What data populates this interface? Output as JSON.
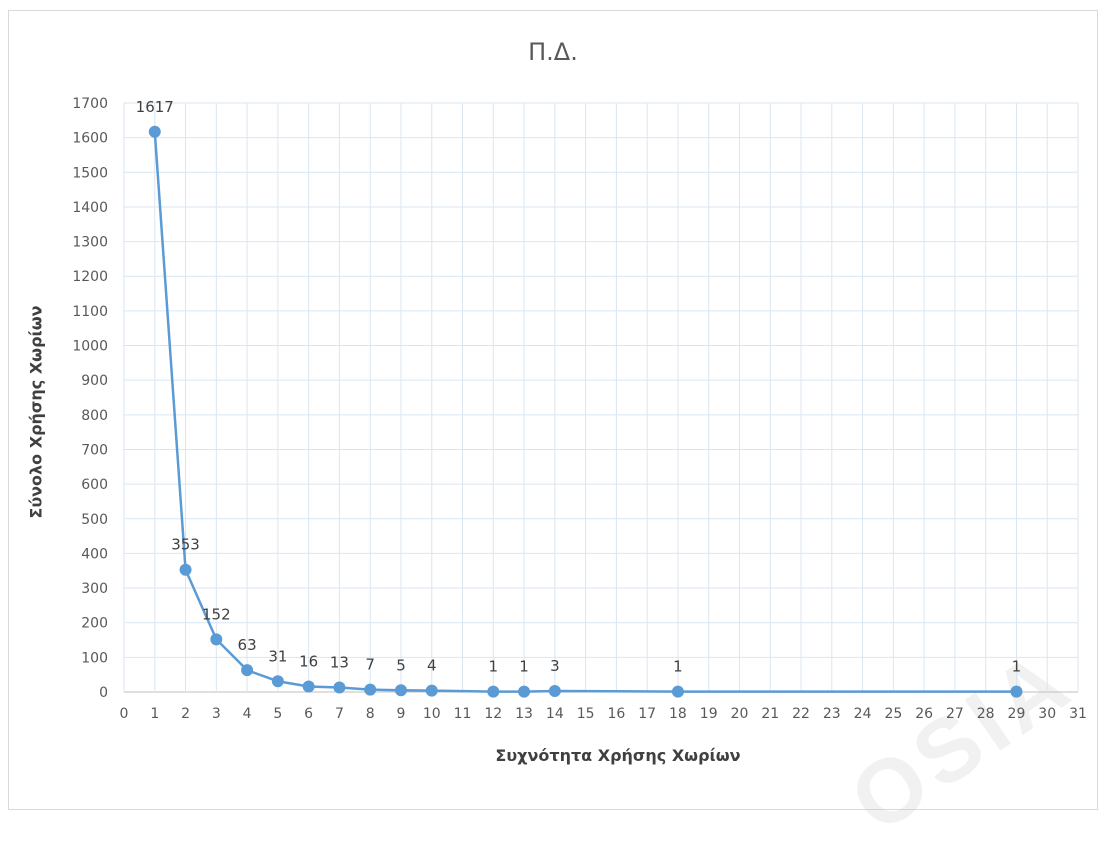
{
  "chart_data": {
    "type": "line",
    "title": "Π.Δ.",
    "xlabel": "Συχνότητα Χρήσης Χωρίων",
    "ylabel": "Σύνολο Χρήσης Χωρίων",
    "xlim": [
      0,
      31
    ],
    "ylim": [
      0,
      1700
    ],
    "x_ticks": [
      0,
      1,
      2,
      3,
      4,
      5,
      6,
      7,
      8,
      9,
      10,
      11,
      12,
      13,
      14,
      15,
      16,
      17,
      18,
      19,
      20,
      21,
      22,
      23,
      24,
      25,
      26,
      27,
      28,
      29,
      30,
      31
    ],
    "y_ticks": [
      0,
      100,
      200,
      300,
      400,
      500,
      600,
      700,
      800,
      900,
      1000,
      1100,
      1200,
      1300,
      1400,
      1500,
      1600,
      1700
    ],
    "grid": true,
    "series": [
      {
        "x": [
          1,
          2,
          3,
          4,
          5,
          6,
          7,
          8,
          9,
          10,
          12,
          13,
          14,
          18,
          29
        ],
        "values": [
          1617,
          353,
          152,
          63,
          31,
          16,
          13,
          7,
          5,
          4,
          1,
          1,
          3,
          1,
          1
        ],
        "labels": [
          "1617",
          "353",
          "152",
          "63",
          "31",
          "16",
          "13",
          "7",
          "5",
          "4",
          "1",
          "1",
          "3",
          "1",
          "1"
        ],
        "color": "#5b9bd5"
      }
    ]
  }
}
